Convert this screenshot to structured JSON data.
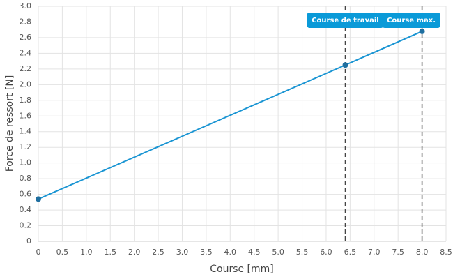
{
  "chart_data": {
    "type": "line",
    "x_label": "Course [mm]",
    "y_label": "Force de ressort [N]",
    "x": [
      0,
      6.4,
      8.0
    ],
    "series": [
      {
        "values": [
          0.54,
          2.25,
          2.68
        ],
        "color": "#1a95d3",
        "marker_color": "#1f6fa0"
      }
    ],
    "xlim": [
      0,
      8.5
    ],
    "xticks": [
      0,
      0.5,
      {
        "value": 1,
        "label": "1.0"
      },
      1.5,
      {
        "value": 2,
        "label": "2.0"
      },
      2.5,
      {
        "value": 3,
        "label": "3.0"
      },
      3.5,
      {
        "value": 4,
        "label": "4.0"
      },
      4.5,
      {
        "value": 5,
        "label": "5.0"
      },
      5.5,
      {
        "value": 6,
        "label": "6.0"
      },
      6.5,
      {
        "value": 7,
        "label": "7.0"
      },
      7.5,
      {
        "value": 8,
        "label": "8.0"
      },
      8.5
    ],
    "ylim": [
      0,
      3
    ],
    "yticks": [
      0,
      0.2,
      0.4,
      0.6,
      0.8,
      {
        "value": 1,
        "label": "1.0"
      },
      1.2,
      1.4,
      1.6,
      1.8,
      {
        "value": 2,
        "label": "2.0"
      },
      2.2,
      2.4,
      2.6,
      2.8,
      {
        "value": 3,
        "label": "3.0"
      }
    ],
    "grid": true,
    "annotations": [
      {
        "x": 6.4,
        "label": "Course de travail",
        "color": "#0a9ad8"
      },
      {
        "x": 8.0,
        "label": "Course max.",
        "color": "#0a9ad8"
      }
    ]
  }
}
